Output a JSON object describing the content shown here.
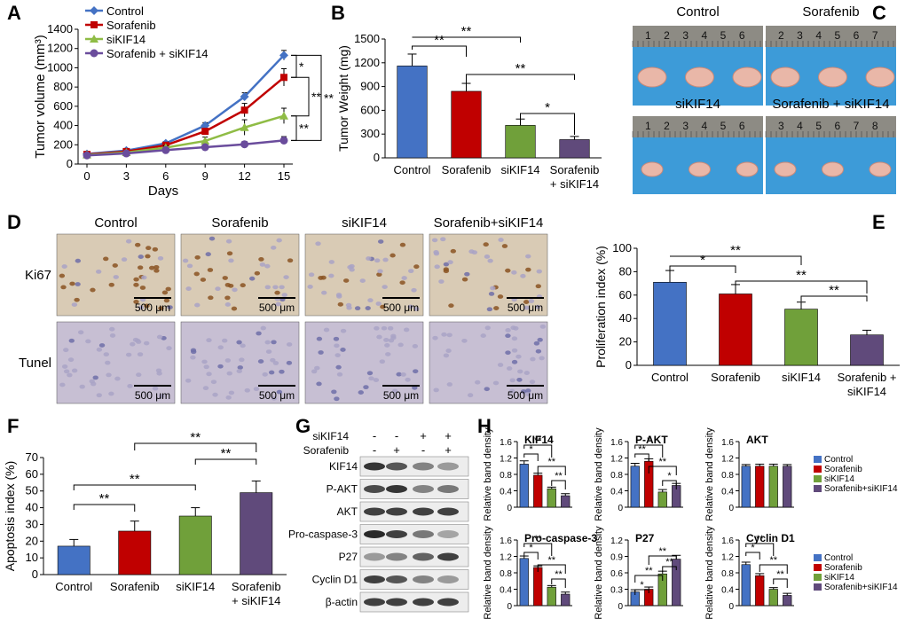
{
  "colors": {
    "control": "#4472C4",
    "sorafenib": "#C00000",
    "siKIF14": "#70A03A",
    "combo": "#604A7B",
    "axis": "#000000"
  },
  "panelA": {
    "letter": "A",
    "ylabel": "Tumor volume (mm³)",
    "xlabel": "Days",
    "sig": [
      "*",
      "**",
      "**",
      "**"
    ],
    "chart_data": {
      "type": "line",
      "x": [
        0,
        3,
        6,
        9,
        12,
        15
      ],
      "ylim": [
        0,
        1400
      ],
      "yticks": [
        0,
        200,
        400,
        600,
        800,
        1000,
        1200,
        1400
      ],
      "series": [
        {
          "name": "Control",
          "values": [
            105,
            140,
            215,
            400,
            700,
            1130
          ],
          "err": [
            10,
            12,
            20,
            30,
            40,
            50
          ],
          "color": "#4472C4",
          "marker": "diamond"
        },
        {
          "name": "Sorafenib",
          "values": [
            100,
            130,
            195,
            340,
            560,
            900
          ],
          "err": [
            10,
            12,
            20,
            30,
            70,
            90
          ],
          "color": "#C00000",
          "marker": "square"
        },
        {
          "name": "siKIF14",
          "values": [
            95,
            120,
            170,
            240,
            380,
            500
          ],
          "err": [
            10,
            12,
            20,
            40,
            80,
            80
          ],
          "color": "#8FBC45",
          "marker": "triangle"
        },
        {
          "name": "Sorafenib + siKIF14",
          "values": [
            90,
            110,
            145,
            175,
            205,
            245
          ],
          "err": [
            10,
            12,
            20,
            20,
            30,
            40
          ],
          "color": "#6A4C9C",
          "marker": "circle"
        }
      ]
    }
  },
  "panelB": {
    "letter": "B",
    "ylabel": "Tumor Weight (mg)",
    "sig": [
      "**",
      "**",
      "**",
      "*"
    ],
    "chart_data": {
      "type": "bar",
      "categories": [
        "Control",
        "Sorafenib",
        "siKIF14",
        "Sorafenib\n+ siKIF14"
      ],
      "values": [
        1160,
        840,
        410,
        230
      ],
      "err": [
        150,
        100,
        80,
        40
      ],
      "ylim": [
        0,
        1500
      ],
      "yticks": [
        0,
        300,
        600,
        900,
        1200,
        1500
      ]
    }
  },
  "panelC": {
    "letter": "C",
    "photos": [
      {
        "title": "Control",
        "ruler": "1 2 3 4 5 6"
      },
      {
        "title": "Sorafenib",
        "ruler": "2 3 4 5 6 7"
      },
      {
        "title": "siKIF14",
        "ruler": "1 2 3 4 5 6"
      },
      {
        "title": "Sorafenib + siKIF14",
        "ruler": "3 4 5 6 7 8"
      }
    ]
  },
  "panelD": {
    "letter": "D",
    "columns": [
      "Control",
      "Sorafenib",
      "siKIF14",
      "Sorafenib+siKIF14"
    ],
    "rows": [
      "Ki67",
      "Tunel"
    ],
    "scale": "500 μm"
  },
  "panelE": {
    "letter": "E",
    "ylabel": "Proliferation index (%)",
    "sig": [
      "*",
      "**",
      "**",
      "**"
    ],
    "chart_data": {
      "type": "bar",
      "categories": [
        "Control",
        "Sorafenib",
        "siKIF14",
        "Sorafenib +\nsiKIF14"
      ],
      "values": [
        71,
        61,
        48,
        26
      ],
      "err": [
        10,
        8,
        6,
        4
      ],
      "ylim": [
        0,
        100
      ],
      "yticks": [
        0,
        20,
        40,
        60,
        80,
        100
      ]
    }
  },
  "panelF": {
    "letter": "F",
    "ylabel": "Apoptosis index (%)",
    "sig": [
      "**",
      "**",
      "**",
      "**"
    ],
    "chart_data": {
      "type": "bar",
      "categories": [
        "Control",
        "Sorafenib",
        "siKIF14",
        "Sorafenib\n+ siKIF14"
      ],
      "values": [
        17,
        26,
        35,
        49
      ],
      "err": [
        4,
        6,
        5,
        7
      ],
      "ylim": [
        0,
        70
      ],
      "yticks": [
        0,
        10,
        20,
        30,
        40,
        50,
        60,
        70
      ]
    }
  },
  "panelG": {
    "letter": "G",
    "conditions": [
      {
        "name": "siKIF14",
        "signs": [
          "-",
          "-",
          "+",
          "+"
        ]
      },
      {
        "name": "Sorafenib",
        "signs": [
          "-",
          "+",
          "-",
          "+"
        ]
      }
    ],
    "bands": [
      {
        "name": "KIF14",
        "intensity": [
          0.9,
          0.75,
          0.55,
          0.45
        ]
      },
      {
        "name": "P-AKT",
        "intensity": [
          0.8,
          0.9,
          0.55,
          0.6
        ]
      },
      {
        "name": "AKT",
        "intensity": [
          0.85,
          0.85,
          0.85,
          0.85
        ]
      },
      {
        "name": "Pro-caspase-3",
        "intensity": [
          0.95,
          0.85,
          0.6,
          0.4
        ]
      },
      {
        "name": "P27",
        "intensity": [
          0.45,
          0.55,
          0.7,
          0.85
        ]
      },
      {
        "name": "Cyclin D1",
        "intensity": [
          0.85,
          0.75,
          0.55,
          0.45
        ]
      },
      {
        "name": "β-actin",
        "intensity": [
          0.85,
          0.85,
          0.85,
          0.85
        ]
      }
    ]
  },
  "panelH": {
    "letter": "H",
    "ylabel": "Relative band density",
    "legend": [
      "Control",
      "Sorafenib",
      "siKIF14",
      "Sorafenib+siKIF14"
    ],
    "chart_data": [
      {
        "type": "bar",
        "title": "KIF14",
        "values": [
          1.05,
          0.78,
          0.45,
          0.28
        ],
        "err": [
          0.08,
          0.05,
          0.04,
          0.05
        ],
        "ylim": [
          0,
          1.6
        ],
        "yticks": [
          "0",
          "0.4",
          "0.8",
          "1.2",
          "1.6"
        ],
        "sig": [
          "*",
          "**",
          "**",
          "**"
        ]
      },
      {
        "type": "bar",
        "title": "P-AKT",
        "values": [
          1.0,
          1.12,
          0.37,
          0.53
        ],
        "err": [
          0.07,
          0.06,
          0.06,
          0.05
        ],
        "ylim": [
          0,
          1.6
        ],
        "yticks": [
          "0",
          "0.4",
          "0.8",
          "1.2",
          "1.6"
        ],
        "sig": [
          "**",
          "*",
          "**",
          "*"
        ]
      },
      {
        "type": "bar",
        "title": "AKT",
        "values": [
          1.0,
          1.0,
          1.0,
          1.0
        ],
        "err": [
          0.04,
          0.05,
          0.05,
          0.04
        ],
        "ylim": [
          0,
          1.6
        ],
        "yticks": [
          "0",
          "0.4",
          "0.8",
          "1.2",
          "1.6"
        ],
        "sig": []
      },
      {
        "type": "bar",
        "title": "Pro-caspase-3",
        "values": [
          1.15,
          0.93,
          0.45,
          0.28
        ],
        "err": [
          0.06,
          0.04,
          0.04,
          0.05
        ],
        "ylim": [
          0,
          1.6
        ],
        "yticks": [
          "0",
          "0.4",
          "0.8",
          "1.2",
          "1.6"
        ],
        "sig": [
          "*",
          "**",
          "**",
          "**"
        ]
      },
      {
        "type": "bar",
        "title": "P27",
        "values": [
          0.25,
          0.3,
          0.58,
          0.85
        ],
        "err": [
          0.04,
          0.04,
          0.05,
          0.07
        ],
        "ylim": [
          0,
          1.2
        ],
        "yticks": [
          "0",
          "0.3",
          "0.6",
          "0.9",
          "1.2"
        ],
        "sig": [
          "*",
          "**",
          "**",
          "**"
        ]
      },
      {
        "type": "bar",
        "title": "Cyclin D1",
        "values": [
          1.0,
          0.73,
          0.4,
          0.25
        ],
        "err": [
          0.06,
          0.05,
          0.04,
          0.05
        ],
        "ylim": [
          0,
          1.6
        ],
        "yticks": [
          "0",
          "0.4",
          "0.8",
          "1.2",
          "1.6"
        ],
        "sig": [
          "*",
          "**",
          "**",
          "**"
        ]
      }
    ]
  }
}
